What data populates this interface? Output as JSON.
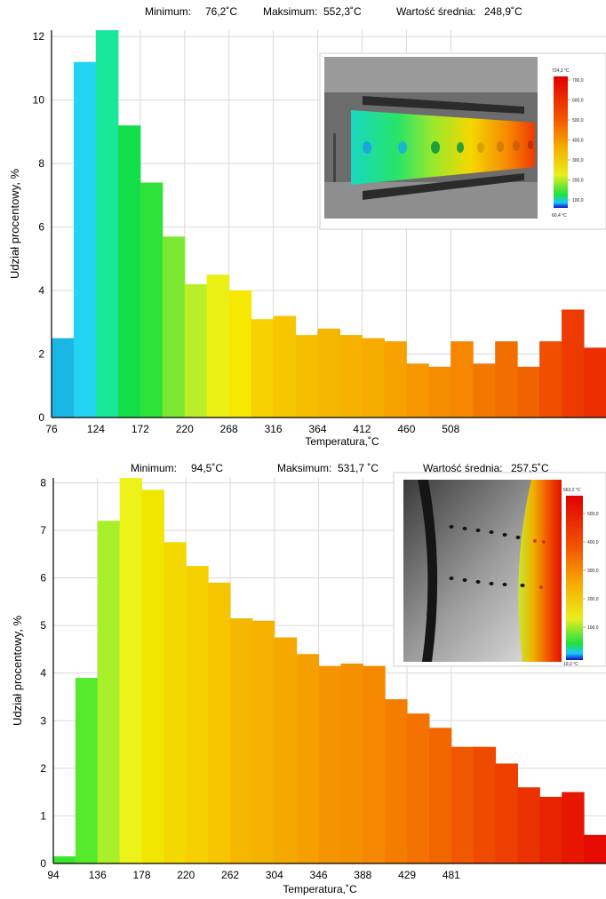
{
  "chart_data": [
    {
      "type": "bar",
      "stats": {
        "min_label": "Minimum:",
        "min_value": "76,2˚C",
        "max_label": "Maksimum:",
        "max_value": "552,3˚C",
        "avg_label": "Wartość średnia:",
        "avg_value": "248,9˚C"
      },
      "xlabel": "Temperatura,˚C",
      "ylabel": "Udział procentowy, %",
      "x_ticks": [
        "76",
        "124",
        "172",
        "220",
        "268",
        "316",
        "364",
        "412",
        "460",
        "508"
      ],
      "y_ticks": [
        "0",
        "2",
        "4",
        "6",
        "8",
        "10",
        "12"
      ],
      "ylim": [
        0,
        12.2
      ],
      "values": [
        2.5,
        11.2,
        12.2,
        9.2,
        7.4,
        5.7,
        4.2,
        4.5,
        4.0,
        3.1,
        3.2,
        2.6,
        2.8,
        2.6,
        2.5,
        2.4,
        1.7,
        1.6,
        2.4,
        1.7,
        2.4,
        1.6,
        2.4,
        3.4,
        2.2
      ],
      "colors": [
        "#1ab6e6",
        "#22d3f2",
        "#19e89a",
        "#13de49",
        "#2de339",
        "#7ce832",
        "#bbee28",
        "#eaf014",
        "#f6e800",
        "#f8d100",
        "#f6c700",
        "#f5bf00",
        "#f5b600",
        "#f7b200",
        "#f7ac00",
        "#f7a100",
        "#f79700",
        "#f78d00",
        "#f78600",
        "#f37800",
        "#f36e00",
        "#f16300",
        "#f04e00",
        "#ec3a00",
        "#ec2e00"
      ],
      "grid": true,
      "inset_colorbar": {
        "top": "724,3 °C",
        "bottom": "60,4 °C",
        "labels": [
          "700,0",
          "600,0",
          "500,0",
          "400,0",
          "300,0",
          "200,0",
          "100,0"
        ]
      }
    },
    {
      "type": "bar",
      "stats": {
        "min_label": "Minimum:",
        "min_value": "94,5˚C",
        "max_label": "Maksimum:",
        "max_value": "531,7 ˚C",
        "avg_label": "Wartość średnia:",
        "avg_value": "257,5˚C"
      },
      "xlabel": "Temperatura,˚C",
      "ylabel": "Udział procentowy, %",
      "x_ticks": [
        "94",
        "136",
        "178",
        "220",
        "262",
        "304",
        "346",
        "388",
        "429",
        "481"
      ],
      "y_ticks": [
        "0",
        "1",
        "2",
        "3",
        "4",
        "5",
        "6",
        "7",
        "8"
      ],
      "ylim": [
        0,
        8.1
      ],
      "values": [
        0.15,
        3.9,
        7.2,
        8.1,
        7.85,
        6.75,
        6.25,
        5.9,
        5.15,
        5.1,
        4.75,
        4.4,
        4.15,
        4.2,
        4.15,
        3.45,
        3.15,
        2.85,
        2.45,
        2.45,
        2.1,
        1.6,
        1.4,
        1.5,
        0.6
      ],
      "colors": [
        "#3ae62b",
        "#55ea2c",
        "#a9f02a",
        "#eef21b",
        "#f1e600",
        "#f4d900",
        "#f5cf00",
        "#f5c500",
        "#f5b700",
        "#f5b100",
        "#f5a800",
        "#f59f00",
        "#f59400",
        "#f59000",
        "#f58800",
        "#f47d00",
        "#f37200",
        "#f26600",
        "#f05800",
        "#ee4a00",
        "#ec3f00",
        "#ea3200",
        "#e82400",
        "#e61600",
        "#e50b00"
      ],
      "grid": true,
      "inset_colorbar": {
        "top": "563,2 °C",
        "bottom": "19,0 °C",
        "labels": [
          "500,0",
          "400,0",
          "300,0",
          "200,0",
          "100,0"
        ]
      }
    }
  ]
}
